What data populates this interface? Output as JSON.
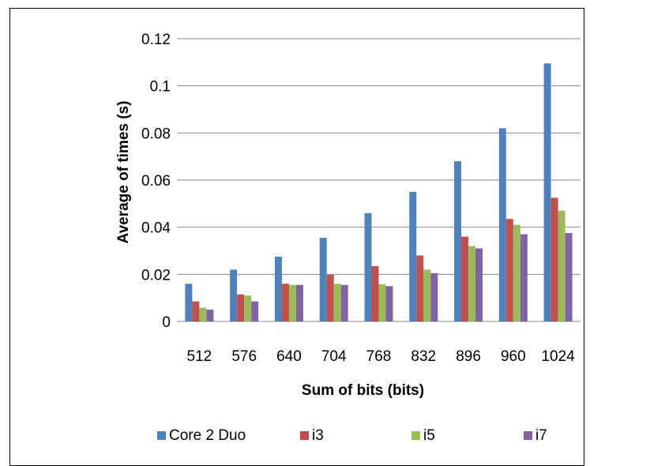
{
  "chart_data": {
    "type": "bar",
    "title": "",
    "xlabel": "Sum of bits (bits)",
    "ylabel": "Average of times (s)",
    "categories": [
      "512",
      "576",
      "640",
      "704",
      "768",
      "832",
      "896",
      "960",
      "1024"
    ],
    "ylim": [
      0,
      0.12
    ],
    "yticks": [
      "0",
      "0.02",
      "0.04",
      "0.06",
      "0.08",
      "0.1",
      "0.12"
    ],
    "ytick_values": [
      0,
      0.02,
      0.04,
      0.06,
      0.08,
      0.1,
      0.12
    ],
    "grid": true,
    "legend_position": "bottom",
    "series": [
      {
        "name": "Core 2 Duo",
        "color": "#4F81BD",
        "values": [
          0.016,
          0.022,
          0.0275,
          0.0355,
          0.046,
          0.055,
          0.068,
          0.082,
          0.1095
        ]
      },
      {
        "name": "i3",
        "color": "#C0504D",
        "values": [
          0.0085,
          0.0115,
          0.016,
          0.0198,
          0.0235,
          0.028,
          0.036,
          0.0435,
          0.0525
        ]
      },
      {
        "name": "i5",
        "color": "#9BBB59",
        "values": [
          0.0058,
          0.011,
          0.0155,
          0.016,
          0.0158,
          0.022,
          0.032,
          0.041,
          0.047
        ]
      },
      {
        "name": "i7",
        "color": "#8064A2",
        "values": [
          0.005,
          0.0085,
          0.0155,
          0.0155,
          0.015,
          0.0205,
          0.031,
          0.037,
          0.0375
        ]
      }
    ]
  }
}
